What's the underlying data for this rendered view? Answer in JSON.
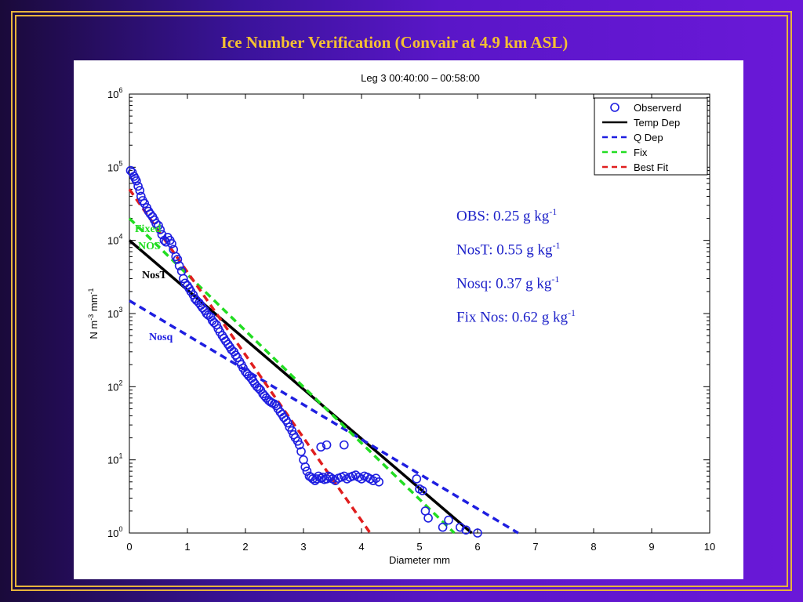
{
  "slide": {
    "title": "Ice Number Verification (Convair at 4.9 km ASL)"
  },
  "colors": {
    "frame": "#e7b43c",
    "title": "#f5c032",
    "observed": "#1e1ee0",
    "temp_dep": "#000000",
    "q_dep": "#1e1ee0",
    "fix": "#22dd22",
    "best_fit": "#e01e1e",
    "stats_text": "#1d21c9"
  },
  "stats": [
    {
      "text": "OBS: 0.25 g kg",
      "sup": "-1"
    },
    {
      "text": "NosT: 0.55 g kg",
      "sup": "-1"
    },
    {
      "text": "Nosq: 0.37 g kg",
      "sup": "-1"
    },
    {
      "text": "Fix Nos: 0.62 g kg",
      "sup": "-1"
    }
  ],
  "annotations": {
    "fixed_line1": "Fixed",
    "fixed_line2": "NOS",
    "nost": "NosT",
    "nosq": "Nosq"
  },
  "chart_data": {
    "type": "scatter",
    "title": "Leg 3  00:40:00 – 00:58:00",
    "xlabel": "Diameter mm",
    "ylabel": "N  m^-3 mm^-1",
    "ylabel_parts": [
      "N  m",
      "-3",
      " mm",
      "-1"
    ],
    "xlim": [
      0,
      10
    ],
    "ylim_log10": [
      0,
      6
    ],
    "y_scale": "log",
    "x_ticks": [
      "0",
      "1",
      "2",
      "3",
      "4",
      "5",
      "6",
      "7",
      "8",
      "9",
      "10"
    ],
    "y_tick_exponents": [
      "0",
      "1",
      "2",
      "3",
      "4",
      "5",
      "6"
    ],
    "y_tick_base": "10",
    "legend_position": "top-right",
    "legend": [
      {
        "label": "Observerd",
        "style": "circle",
        "color": "#1e1ee0"
      },
      {
        "label": "Temp Dep",
        "style": "solid",
        "color": "#000000"
      },
      {
        "label": "Q Dep",
        "style": "dashed",
        "color": "#1e1ee0"
      },
      {
        "label": "Fix",
        "style": "dashed",
        "color": "#22dd22"
      },
      {
        "label": "Best Fit",
        "style": "dashed",
        "color": "#e01e1e"
      }
    ],
    "lines": [
      {
        "name": "Temp Dep",
        "x": [
          0,
          5.9
        ],
        "y": [
          10000,
          1
        ],
        "color": "#000000",
        "dash": false
      },
      {
        "name": "Q Dep",
        "x": [
          0,
          6.7
        ],
        "y": [
          1500,
          1
        ],
        "color": "#1e1ee0",
        "dash": true
      },
      {
        "name": "Fix",
        "x": [
          0,
          5.6
        ],
        "y": [
          20000,
          1
        ],
        "color": "#22dd22",
        "dash": true
      },
      {
        "name": "Best Fit",
        "x": [
          0,
          4.15
        ],
        "y": [
          50000,
          1
        ],
        "color": "#e01e1e",
        "dash": true
      }
    ],
    "observed": {
      "x": [
        0.02,
        0.05,
        0.08,
        0.1,
        0.12,
        0.15,
        0.18,
        0.2,
        0.23,
        0.26,
        0.3,
        0.33,
        0.36,
        0.4,
        0.43,
        0.46,
        0.5,
        0.53,
        0.56,
        0.6,
        0.63,
        0.66,
        0.7,
        0.73,
        0.76,
        0.8,
        0.83,
        0.86,
        0.9,
        0.93,
        0.96,
        1.0,
        1.03,
        1.06,
        1.1,
        1.13,
        1.16,
        1.2,
        1.23,
        1.26,
        1.3,
        1.33,
        1.36,
        1.4,
        1.43,
        1.46,
        1.5,
        1.53,
        1.56,
        1.6,
        1.63,
        1.66,
        1.7,
        1.73,
        1.76,
        1.8,
        1.83,
        1.86,
        1.9,
        1.93,
        1.96,
        2.0,
        2.03,
        2.06,
        2.1,
        2.13,
        2.16,
        2.2,
        2.23,
        2.26,
        2.3,
        2.33,
        2.36,
        2.4,
        2.43,
        2.46,
        2.5,
        2.53,
        2.56,
        2.6,
        2.63,
        2.66,
        2.7,
        2.73,
        2.76,
        2.8,
        2.83,
        2.86,
        2.9,
        2.93,
        2.96,
        3.0,
        3.03,
        3.06,
        3.1,
        3.13,
        3.16,
        3.2,
        3.23,
        3.26,
        3.3,
        3.33,
        3.36,
        3.4,
        3.43,
        3.46,
        3.5,
        3.55,
        3.6,
        3.65,
        3.7,
        3.75,
        3.8,
        3.85,
        3.9,
        3.95,
        4.0,
        4.05,
        4.1,
        4.15,
        4.2,
        4.25,
        4.3,
        3.3,
        3.4,
        3.7,
        4.95,
        5.0,
        5.05,
        5.1,
        5.15,
        5.4,
        5.5,
        5.7,
        5.8,
        6.0
      ],
      "y": [
        90000,
        85000,
        75000,
        70000,
        65000,
        55000,
        48000,
        40000,
        35000,
        32000,
        28000,
        25000,
        23000,
        21000,
        19000,
        17000,
        16000,
        14000,
        12000,
        10000,
        9500,
        11000,
        10000,
        9000,
        7500,
        6000,
        5500,
        4500,
        3800,
        3000,
        2600,
        2400,
        2200,
        2000,
        1800,
        1600,
        1500,
        1400,
        1300,
        1200,
        1100,
        1000,
        950,
        900,
        800,
        750,
        700,
        620,
        560,
        500,
        460,
        420,
        380,
        350,
        320,
        300,
        270,
        250,
        220,
        200,
        180,
        160,
        150,
        140,
        130,
        120,
        110,
        100,
        95,
        90,
        80,
        75,
        70,
        65,
        62,
        60,
        58,
        55,
        50,
        45,
        42,
        38,
        35,
        32,
        28,
        25,
        22,
        20,
        18,
        16,
        13,
        10,
        8,
        7,
        6,
        5.8,
        5.5,
        5.2,
        5.5,
        6,
        5.6,
        5.8,
        5.4,
        5.5,
        6,
        5.8,
        5.5,
        5.2,
        5.6,
        5.8,
        6,
        5.5,
        5.8,
        6,
        6.2,
        5.8,
        5.5,
        6,
        5.8,
        5.5,
        5.2,
        5.6,
        5,
        15,
        16,
        16,
        5.5,
        4,
        3.8,
        2,
        1.6,
        1.2,
        1.5,
        1.2,
        1.1,
        1.0
      ]
    }
  }
}
